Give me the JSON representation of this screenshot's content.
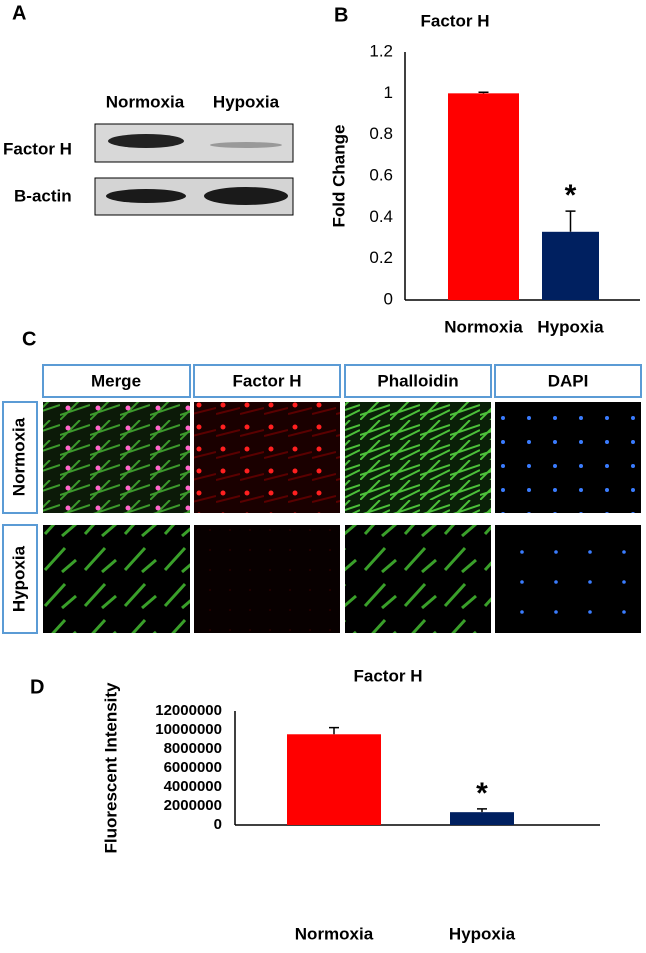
{
  "panel_labels": [
    "A",
    "B",
    "C",
    "D"
  ],
  "blot": {
    "columns": [
      "Normoxia",
      "Hypoxia"
    ],
    "rows": [
      "Factor H",
      "B-actin"
    ]
  },
  "microscopy": {
    "columns": [
      "Merge",
      "Factor H",
      "Phalloidin",
      "DAPI"
    ],
    "rows": [
      "Normoxia",
      "Hypoxia"
    ]
  },
  "chart_data": [
    {
      "type": "bar",
      "title": "Factor H",
      "y_label": "Fold Change",
      "categories": [
        "Normoxia",
        "Hypoxia"
      ],
      "values": [
        1,
        0.33
      ],
      "errors": [
        0.005,
        0.1
      ],
      "colors": [
        "#ff0000",
        "#002060"
      ],
      "ylim": [
        0,
        1.2
      ],
      "yticks": [
        0,
        0.2,
        0.4,
        0.6,
        0.8,
        1,
        1.2
      ],
      "annotations": [
        {
          "text": "*",
          "category": "Hypoxia"
        }
      ]
    },
    {
      "type": "bar",
      "title": "Factor H",
      "y_label": "Fluorescent Intensity",
      "categories": [
        "Normoxia",
        "Hypoxia"
      ],
      "values": [
        9550000,
        1350000
      ],
      "errors": [
        700000,
        350000
      ],
      "colors": [
        "#ff0000",
        "#002060"
      ],
      "ylim": [
        0,
        12000000
      ],
      "yticks": [
        0,
        2000000,
        4000000,
        6000000,
        8000000,
        10000000,
        12000000
      ],
      "annotations": [
        {
          "text": "*",
          "category": "Hypoxia"
        }
      ]
    }
  ]
}
